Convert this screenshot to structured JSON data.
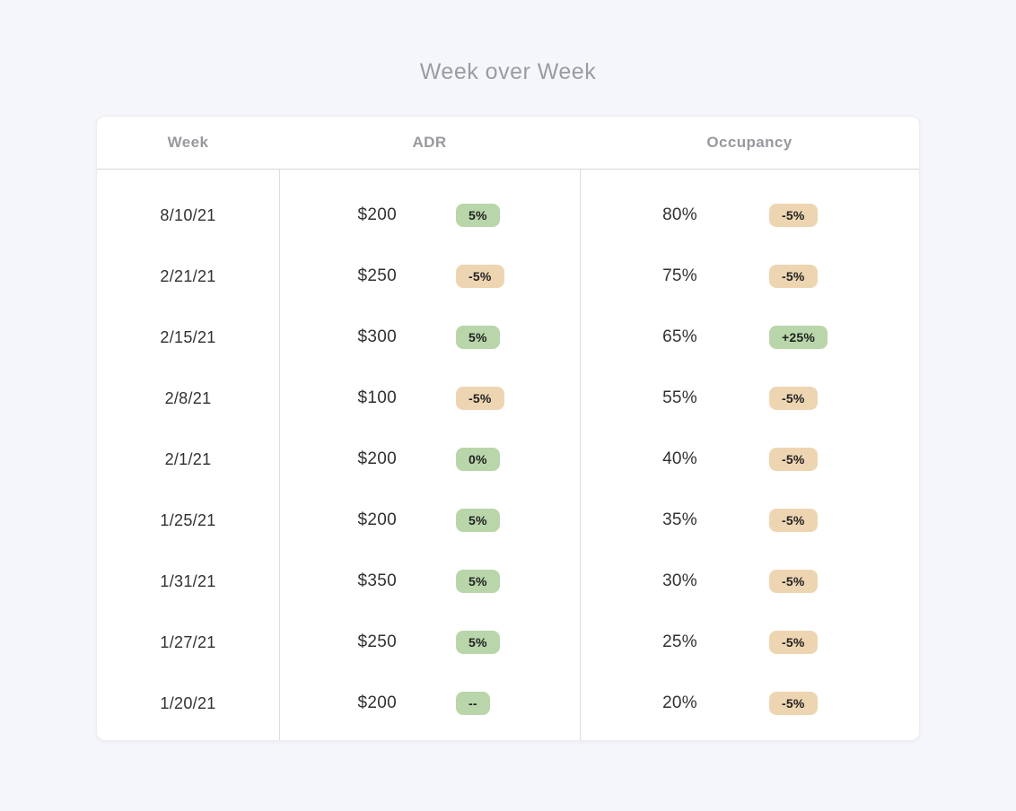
{
  "title": "Week over Week",
  "colors": {
    "page_background": "#f5f6fa",
    "card_background": "#ffffff",
    "positive_badge_bg": "#b9d6aa",
    "negative_badge_bg": "#eed5b2",
    "badge_text": "#222222",
    "header_text": "#97999e",
    "title_text": "#9b9ca1",
    "body_text": "#313131",
    "divider": "#dcdce1"
  },
  "table": {
    "headers": [
      "Week",
      "ADR",
      "Occupancy"
    ],
    "rows": [
      {
        "week": "8/10/21",
        "adr_value": "$200",
        "adr_change": "5%",
        "adr_change_type": "positive",
        "occupancy_value": "80%",
        "occupancy_change": "-5%",
        "occupancy_change_type": "negative"
      },
      {
        "week": "2/21/21",
        "adr_value": "$250",
        "adr_change": "-5%",
        "adr_change_type": "negative",
        "occupancy_value": "75%",
        "occupancy_change": "-5%",
        "occupancy_change_type": "negative"
      },
      {
        "week": "2/15/21",
        "adr_value": "$300",
        "adr_change": "5%",
        "adr_change_type": "positive",
        "occupancy_value": "65%",
        "occupancy_change": "+25%",
        "occupancy_change_type": "positive"
      },
      {
        "week": "2/8/21",
        "adr_value": "$100",
        "adr_change": "-5%",
        "adr_change_type": "negative",
        "occupancy_value": "55%",
        "occupancy_change": "-5%",
        "occupancy_change_type": "negative"
      },
      {
        "week": "2/1/21",
        "adr_value": "$200",
        "adr_change": "0%",
        "adr_change_type": "positive",
        "occupancy_value": "40%",
        "occupancy_change": "-5%",
        "occupancy_change_type": "negative"
      },
      {
        "week": "1/25/21",
        "adr_value": "$200",
        "adr_change": "5%",
        "adr_change_type": "positive",
        "occupancy_value": "35%",
        "occupancy_change": "-5%",
        "occupancy_change_type": "negative"
      },
      {
        "week": "1/31/21",
        "adr_value": "$350",
        "adr_change": "5%",
        "adr_change_type": "positive",
        "occupancy_value": "30%",
        "occupancy_change": "-5%",
        "occupancy_change_type": "negative"
      },
      {
        "week": "1/27/21",
        "adr_value": "$250",
        "adr_change": "5%",
        "adr_change_type": "positive",
        "occupancy_value": "25%",
        "occupancy_change": "-5%",
        "occupancy_change_type": "negative"
      },
      {
        "week": "1/20/21",
        "adr_value": "$200",
        "adr_change": "--",
        "adr_change_type": "positive",
        "occupancy_value": "20%",
        "occupancy_change": "-5%",
        "occupancy_change_type": "negative"
      }
    ]
  }
}
